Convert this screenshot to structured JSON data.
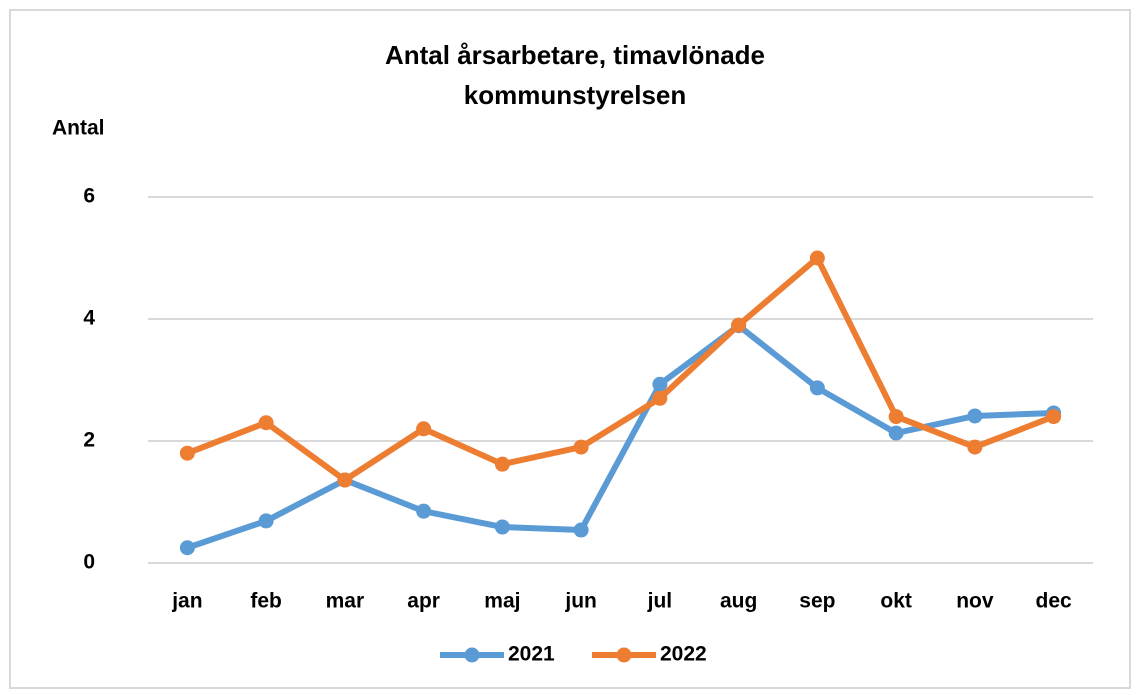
{
  "chart_data": {
    "type": "line",
    "title": [
      "Antal årsarbetare, timavlönade",
      "kommunstyrelsen"
    ],
    "y_label": "Antal",
    "categories": [
      "jan",
      "feb",
      "mar",
      "apr",
      "maj",
      "jun",
      "jul",
      "aug",
      "sep",
      "okt",
      "nov",
      "dec"
    ],
    "series": [
      {
        "name": "2021",
        "color": "#5b9bd5",
        "values": [
          0.25,
          0.69,
          1.36,
          0.85,
          0.59,
          0.54,
          2.93,
          3.89,
          2.87,
          2.13,
          2.41,
          2.46
        ]
      },
      {
        "name": "2022",
        "color": "#ed7d31",
        "values": [
          1.8,
          2.3,
          1.36,
          2.2,
          1.62,
          1.9,
          2.7,
          3.9,
          5.0,
          2.4,
          1.9,
          2.4
        ]
      }
    ],
    "ylim": [
      0,
      6
    ],
    "yticks": [
      0,
      2,
      4,
      6
    ],
    "grid": true,
    "legend": "bottom"
  }
}
